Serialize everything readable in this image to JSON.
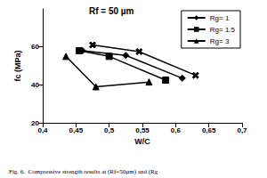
{
  "chart_data": {
    "type": "line",
    "title": "Rf = 50 µm",
    "x_label": "W/C",
    "y_label": "fc (MPa)",
    "caption": "Fig. 6.  Compressive strength results at (Rf=50µm) and (Rg",
    "xlim": [
      0.4,
      0.7
    ],
    "xticks": [
      {
        "value": 0.4,
        "label": "0,4"
      },
      {
        "value": 0.45,
        "label": "0,45"
      },
      {
        "value": 0.5,
        "label": "0,5"
      },
      {
        "value": 0.55,
        "label": "0,55"
      },
      {
        "value": 0.6,
        "label": "0,6"
      },
      {
        "value": 0.65,
        "label": "0,65"
      },
      {
        "value": 0.7,
        "label": "0,7"
      }
    ],
    "ylim": [
      20,
      80
    ],
    "yticks": [
      20,
      40,
      60
    ],
    "grid": false,
    "legend": "upper right",
    "series": [
      {
        "color": "#000000",
        "marker": "x",
        "x": [
          0.475,
          0.545,
          0.63
        ],
        "values": [
          61,
          57.5,
          45
        ]
      },
      {
        "name": "Rg= 1",
        "color": "#000000",
        "marker": "diamond",
        "x": [
          0.46,
          0.525,
          0.61
        ],
        "values": [
          58,
          55.5,
          43.5
        ]
      },
      {
        "name": "Rg= 1.5",
        "color": "#000000",
        "marker": "square",
        "x": [
          0.455,
          0.5,
          0.585
        ],
        "values": [
          58,
          55,
          42.5
        ]
      },
      {
        "name": "Rg= 3",
        "color": "#000000",
        "marker": "triangle",
        "x": [
          0.435,
          0.48,
          0.56
        ],
        "values": [
          55,
          39,
          41.5
        ]
      }
    ]
  }
}
